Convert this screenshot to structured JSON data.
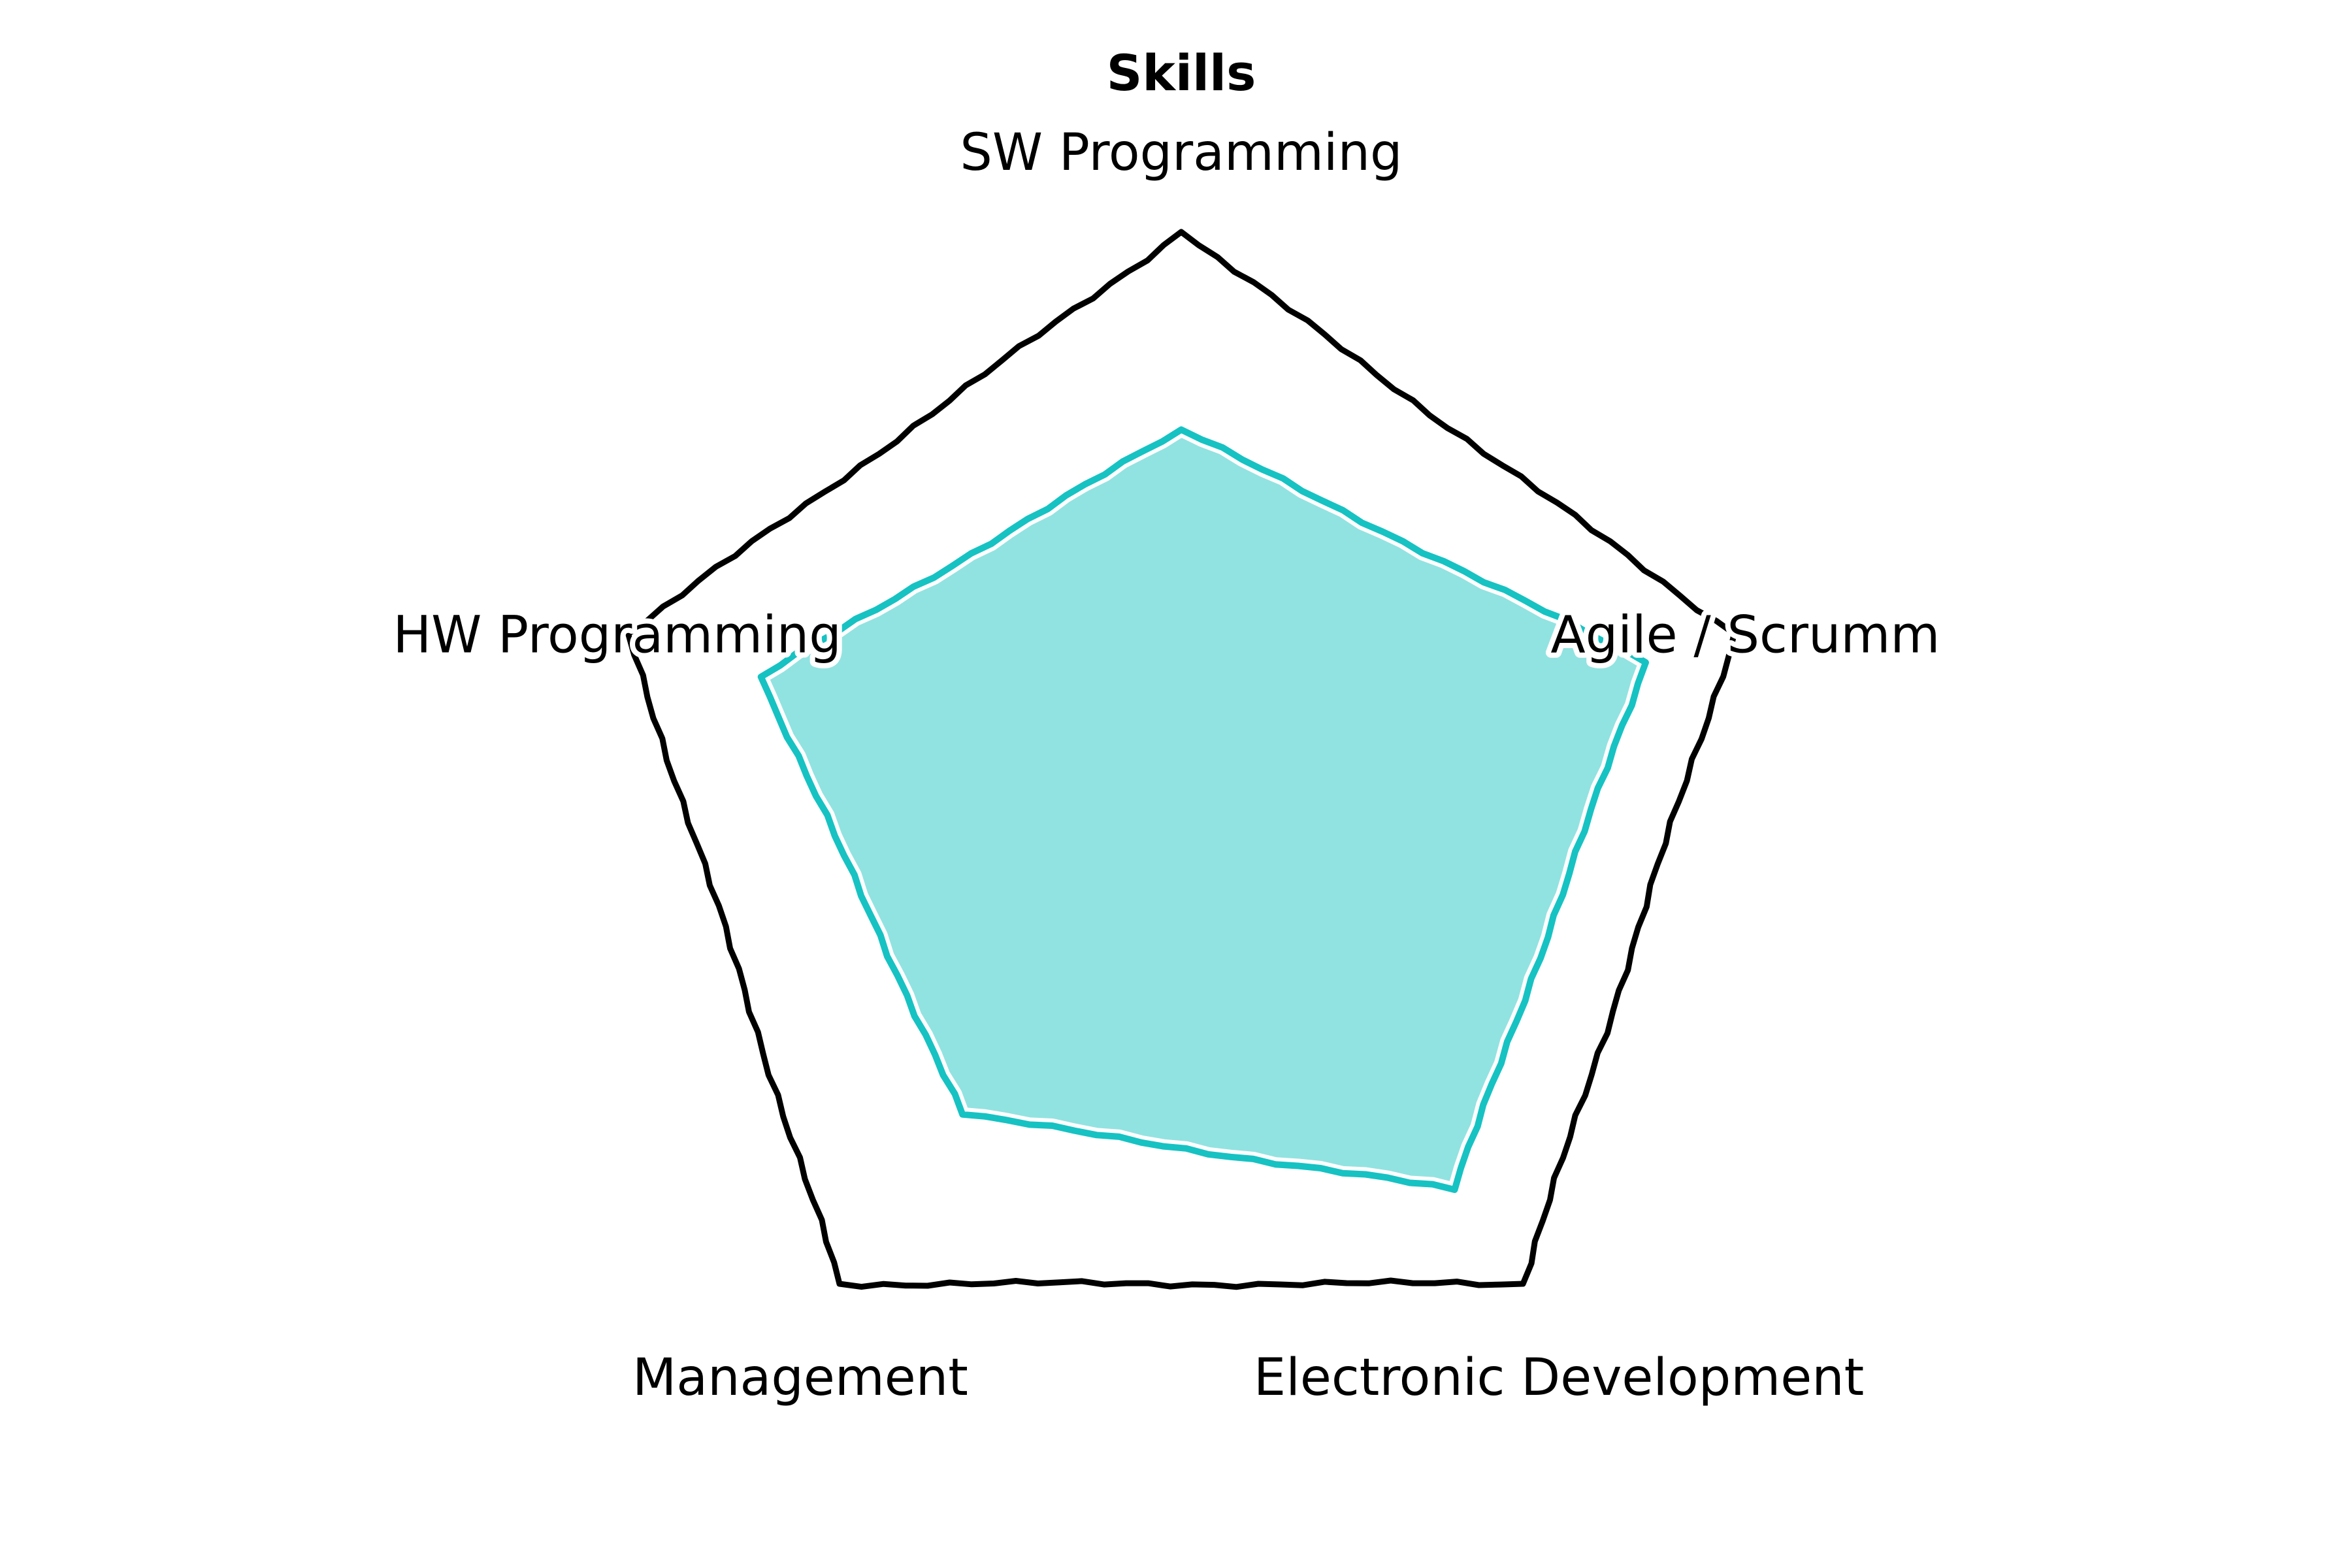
{
  "chart_data": {
    "type": "radar",
    "title": "Skills",
    "categories": [
      "SW Programming",
      "Agile / Scrumm",
      "Electronic Development",
      "Management",
      "HW Programming"
    ],
    "rmax": 5,
    "series": [
      {
        "values": [
          3.3,
          4.2,
          4.0,
          3.2,
          3.8
        ]
      }
    ],
    "colors": {
      "outline": "#000000",
      "series_line": "#17c2c3",
      "series_fill": "#91e3e1",
      "series_halo": "#ffffff"
    },
    "grid": false,
    "legend": "none"
  }
}
